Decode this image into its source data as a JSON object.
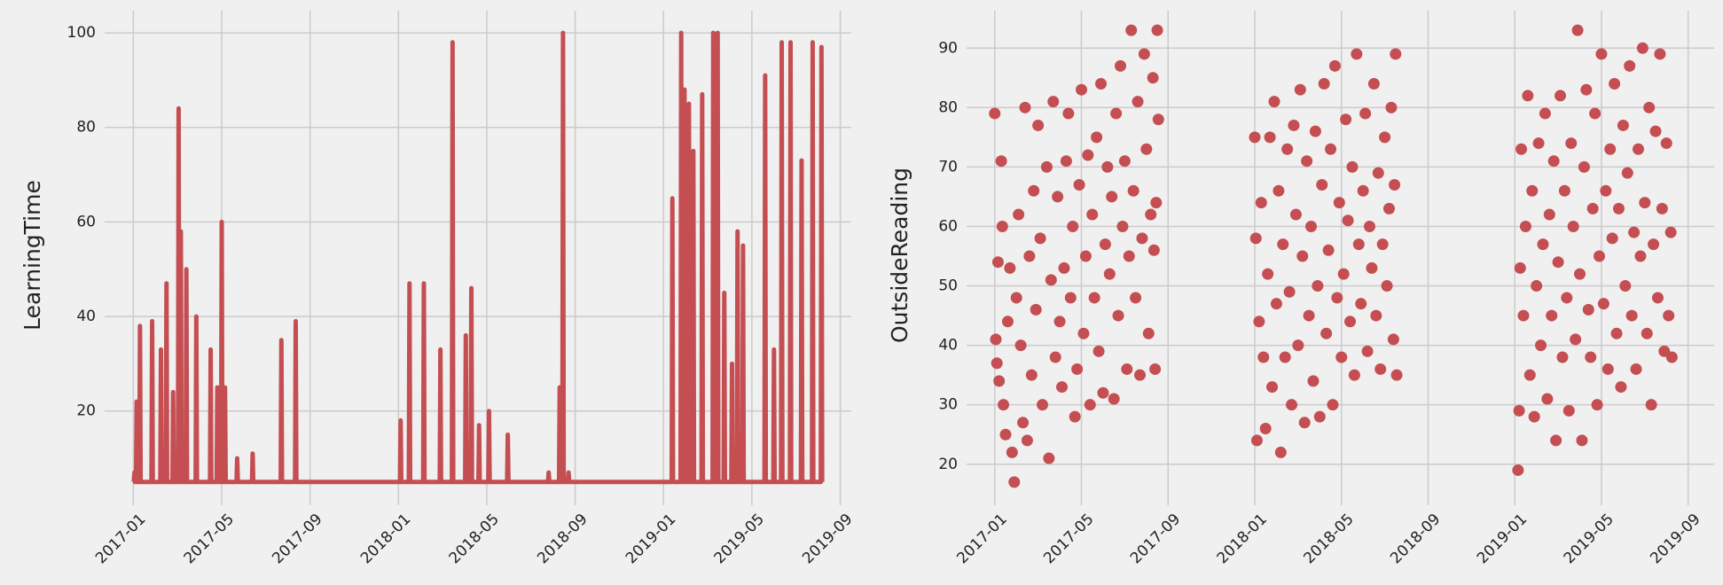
{
  "chart_data": [
    {
      "type": "line",
      "y_label": "LearningTime",
      "color": "#c44e52",
      "grid": true,
      "xlim": [
        -1.3,
        32.5
      ],
      "ylim": [
        1.2,
        104.7
      ],
      "xticks": [
        {
          "value": 0,
          "label": "2017-01"
        },
        {
          "value": 4,
          "label": "2017-05"
        },
        {
          "value": 8,
          "label": "2017-09"
        },
        {
          "value": 12,
          "label": "2018-01"
        },
        {
          "value": 16,
          "label": "2018-05"
        },
        {
          "value": 20,
          "label": "2018-09"
        },
        {
          "value": 24,
          "label": "2019-01"
        },
        {
          "value": 28,
          "label": "2019-05"
        },
        {
          "value": 32,
          "label": "2019-09"
        }
      ],
      "yticks": [
        20,
        40,
        60,
        80,
        100
      ],
      "x": [
        0,
        0.02,
        0.05,
        0.08,
        0.12,
        0.15,
        0.18,
        0.27,
        0.3,
        0.33,
        0.82,
        0.85,
        0.88,
        1.22,
        1.25,
        1.28,
        1.47,
        1.5,
        1.53,
        1.77,
        1.8,
        1.83,
        2.02,
        2.05,
        2.08,
        2.12,
        2.15,
        2.18,
        2.37,
        2.4,
        2.43,
        2.82,
        2.85,
        2.88,
        3.47,
        3.5,
        3.53,
        3.77,
        3.8,
        3.83,
        3.97,
        4.0,
        4.03,
        4.12,
        4.15,
        4.18,
        4.67,
        4.7,
        4.73,
        5.37,
        5.4,
        5.43,
        6.67,
        6.7,
        6.73,
        7.32,
        7.35,
        7.38,
        12.07,
        12.1,
        12.13,
        12.47,
        12.5,
        12.53,
        13.12,
        13.15,
        13.18,
        13.87,
        13.9,
        13.93,
        14.42,
        14.45,
        14.48,
        15.02,
        15.05,
        15.08,
        15.27,
        15.3,
        15.33,
        15.62,
        15.65,
        15.68,
        16.07,
        16.1,
        16.13,
        16.92,
        16.95,
        16.98,
        18.77,
        18.8,
        18.83,
        19.27,
        19.3,
        19.33,
        19.42,
        19.45,
        19.48,
        19.67,
        19.7,
        19.73,
        24.37,
        24.4,
        24.43,
        24.77,
        24.8,
        24.83,
        24.92,
        24.95,
        24.98,
        25.12,
        25.15,
        25.18,
        25.32,
        25.35,
        25.38,
        25.72,
        25.75,
        25.78,
        26.22,
        26.25,
        26.28,
        26.42,
        26.45,
        26.48,
        26.72,
        26.75,
        26.78,
        27.07,
        27.1,
        27.13,
        27.32,
        27.35,
        27.38,
        27.57,
        27.6,
        27.63,
        28.57,
        28.6,
        28.63,
        28.97,
        29.0,
        29.03,
        29.32,
        29.35,
        29.38,
        29.72,
        29.75,
        29.78,
        30.22,
        30.25,
        30.28,
        30.72,
        30.75,
        30.78,
        31.12,
        31.15,
        31.18
      ],
      "values": [
        5,
        5,
        7,
        5,
        5,
        22,
        5,
        5,
        38,
        5,
        5,
        39,
        5,
        5,
        33,
        5,
        5,
        47,
        5,
        5,
        24,
        5,
        5,
        84,
        5,
        5,
        58,
        5,
        5,
        50,
        5,
        5,
        40,
        5,
        5,
        33,
        5,
        5,
        25,
        5,
        5,
        60,
        5,
        5,
        25,
        5,
        5,
        10,
        5,
        5,
        11,
        5,
        5,
        35,
        5,
        5,
        39,
        5,
        5,
        18,
        5,
        5,
        47,
        5,
        5,
        47,
        5,
        5,
        33,
        5,
        5,
        98,
        5,
        5,
        36,
        5,
        5,
        46,
        5,
        5,
        17,
        5,
        5,
        20,
        5,
        5,
        15,
        5,
        5,
        7,
        5,
        5,
        25,
        5,
        5,
        100,
        5,
        5,
        7,
        5,
        5,
        65,
        5,
        5,
        100,
        5,
        5,
        88,
        5,
        5,
        85,
        5,
        5,
        75,
        5,
        5,
        87,
        5,
        5,
        100,
        5,
        5,
        100,
        5,
        5,
        45,
        5,
        5,
        30,
        5,
        5,
        58,
        5,
        5,
        55,
        5,
        5,
        91,
        5,
        5,
        33,
        5,
        5,
        98,
        5,
        5,
        98,
        5,
        5,
        73,
        5,
        5,
        98,
        5,
        5,
        97,
        5
      ]
    },
    {
      "type": "scatter",
      "y_label": "OutsideReading",
      "color": "#c44e52",
      "grid": true,
      "xlim": [
        -1.3,
        33.2
      ],
      "ylim": [
        14,
        96.3
      ],
      "xticks": [
        {
          "value": 0,
          "label": "2017-01"
        },
        {
          "value": 4,
          "label": "2017-05"
        },
        {
          "value": 8,
          "label": "2017-09"
        },
        {
          "value": 12,
          "label": "2018-01"
        },
        {
          "value": 16,
          "label": "2018-05"
        },
        {
          "value": 20,
          "label": "2018-09"
        },
        {
          "value": 24,
          "label": "2019-01"
        },
        {
          "value": 28,
          "label": "2019-05"
        },
        {
          "value": 32,
          "label": "2019-09"
        }
      ],
      "yticks": [
        20,
        30,
        40,
        50,
        60,
        70,
        80,
        90
      ],
      "x": [
        0,
        0.05,
        0.1,
        0.15,
        0.2,
        0.3,
        0.35,
        0.4,
        0.5,
        0.6,
        0.7,
        0.8,
        0.9,
        1.0,
        1.1,
        1.2,
        1.3,
        1.4,
        1.5,
        1.6,
        1.7,
        1.8,
        1.9,
        2.0,
        2.1,
        2.2,
        2.4,
        2.5,
        2.6,
        2.7,
        2.8,
        2.9,
        3.0,
        3.1,
        3.2,
        3.3,
        3.4,
        3.5,
        3.6,
        3.7,
        3.8,
        3.9,
        4.0,
        4.1,
        4.2,
        4.3,
        4.4,
        4.5,
        4.6,
        4.7,
        4.8,
        4.9,
        5.0,
        5.1,
        5.2,
        5.3,
        5.4,
        5.5,
        5.6,
        5.7,
        5.8,
        5.9,
        6.0,
        6.1,
        6.2,
        6.3,
        6.4,
        6.5,
        6.6,
        6.7,
        6.8,
        6.9,
        7.0,
        7.1,
        7.2,
        7.3,
        7.4,
        7.5,
        7.55,
        7.45,
        7.35,
        12.0,
        12.05,
        12.1,
        12.2,
        12.3,
        12.4,
        12.5,
        12.6,
        12.7,
        12.8,
        12.9,
        13.0,
        13.1,
        13.2,
        13.3,
        13.4,
        13.5,
        13.6,
        13.7,
        13.8,
        13.9,
        14.0,
        14.1,
        14.2,
        14.3,
        14.4,
        14.5,
        14.6,
        14.7,
        14.8,
        14.9,
        15.0,
        15.1,
        15.2,
        15.3,
        15.4,
        15.5,
        15.6,
        15.7,
        15.8,
        15.9,
        16.0,
        16.1,
        16.2,
        16.3,
        16.4,
        16.5,
        16.6,
        16.7,
        16.8,
        16.9,
        17.0,
        17.1,
        17.2,
        17.3,
        17.4,
        17.5,
        17.6,
        17.7,
        17.8,
        17.9,
        18.0,
        18.1,
        18.2,
        18.3,
        18.4,
        18.5,
        18.55,
        18.45,
        24.15,
        24.2,
        24.25,
        24.3,
        24.4,
        24.5,
        24.6,
        24.7,
        24.8,
        24.9,
        25.0,
        25.1,
        25.2,
        25.3,
        25.4,
        25.5,
        25.6,
        25.7,
        25.8,
        25.9,
        26.0,
        26.1,
        26.2,
        26.3,
        26.4,
        26.5,
        26.6,
        26.7,
        26.8,
        26.9,
        27.0,
        27.1,
        27.2,
        27.3,
        27.4,
        27.5,
        27.6,
        27.7,
        27.8,
        27.9,
        28.0,
        28.1,
        28.2,
        28.3,
        28.4,
        28.5,
        28.6,
        28.7,
        28.8,
        28.9,
        29.0,
        29.1,
        29.2,
        29.3,
        29.4,
        29.5,
        29.6,
        29.7,
        29.8,
        29.9,
        30.0,
        30.1,
        30.2,
        30.3,
        30.4,
        30.5,
        30.6,
        30.7,
        30.8,
        30.9,
        31.0,
        31.1,
        31.2,
        31.25
      ],
      "values": [
        79,
        41,
        37,
        54,
        34,
        71,
        60,
        30,
        25,
        44,
        53,
        22,
        17,
        48,
        62,
        40,
        27,
        80,
        24,
        55,
        35,
        66,
        46,
        77,
        58,
        30,
        70,
        21,
        51,
        81,
        38,
        65,
        44,
        33,
        53,
        71,
        79,
        48,
        60,
        28,
        36,
        67,
        83,
        42,
        55,
        72,
        30,
        62,
        48,
        75,
        39,
        84,
        32,
        57,
        70,
        52,
        65,
        31,
        79,
        45,
        87,
        60,
        71,
        36,
        55,
        93,
        66,
        48,
        81,
        35,
        58,
        89,
        73,
        42,
        62,
        85,
        36,
        93,
        78,
        64,
        56,
        75,
        58,
        24,
        44,
        64,
        38,
        26,
        52,
        75,
        33,
        81,
        47,
        66,
        22,
        57,
        38,
        73,
        49,
        30,
        77,
        62,
        40,
        83,
        55,
        27,
        71,
        45,
        60,
        34,
        76,
        50,
        28,
        67,
        84,
        42,
        56,
        73,
        30,
        87,
        48,
        64,
        38,
        52,
        78,
        61,
        44,
        70,
        35,
        89,
        57,
        47,
        66,
        79,
        39,
        60,
        53,
        84,
        45,
        69,
        36,
        57,
        75,
        50,
        63,
        80,
        41,
        89,
        35,
        67,
        19,
        29,
        53,
        73,
        45,
        60,
        82,
        35,
        66,
        28,
        50,
        74,
        40,
        57,
        79,
        31,
        62,
        45,
        71,
        24,
        54,
        82,
        38,
        66,
        48,
        29,
        74,
        60,
        41,
        93,
        52,
        24,
        70,
        83,
        46,
        38,
        63,
        79,
        30,
        55,
        89,
        47,
        66,
        36,
        73,
        58,
        84,
        42,
        63,
        33,
        77,
        50,
        69,
        87,
        45,
        59,
        36,
        73,
        55,
        90,
        64,
        42,
        80,
        30,
        57,
        76,
        48,
        89,
        63,
        39,
        74,
        45,
        59,
        38
      ]
    }
  ]
}
